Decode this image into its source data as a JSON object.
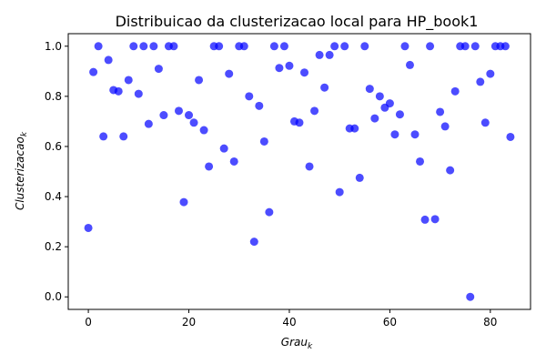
{
  "chart_data": {
    "type": "scatter",
    "title": "Distribuicao da clusterizacao local para HP_book1",
    "xlabel": "Grau_k",
    "ylabel": "Clusterizacao_k",
    "xlim": [
      -4,
      88
    ],
    "ylim": [
      -0.05,
      1.05
    ],
    "xticks": [
      0,
      20,
      40,
      60,
      80
    ],
    "yticks": [
      0.0,
      0.2,
      0.4,
      0.6,
      0.8,
      1.0
    ],
    "marker_color": "#0000ff",
    "grid": false,
    "series": [
      {
        "points": [
          [
            0,
            0.275
          ],
          [
            1,
            0.897
          ],
          [
            2,
            1.0
          ],
          [
            3,
            0.64
          ],
          [
            4,
            0.945
          ],
          [
            5,
            0.825
          ],
          [
            6,
            0.82
          ],
          [
            7,
            0.64
          ],
          [
            8,
            0.865
          ],
          [
            9,
            1.0
          ],
          [
            10,
            0.81
          ],
          [
            11,
            1.0
          ],
          [
            12,
            0.69
          ],
          [
            13,
            1.0
          ],
          [
            14,
            0.91
          ],
          [
            15,
            0.725
          ],
          [
            16,
            1.0
          ],
          [
            17,
            1.0
          ],
          [
            18,
            0.742
          ],
          [
            19,
            0.378
          ],
          [
            20,
            0.725
          ],
          [
            21,
            0.695
          ],
          [
            22,
            0.865
          ],
          [
            23,
            0.665
          ],
          [
            24,
            0.52
          ],
          [
            25,
            1.0
          ],
          [
            26,
            1.0
          ],
          [
            27,
            0.592
          ],
          [
            28,
            0.89
          ],
          [
            29,
            0.54
          ],
          [
            30,
            1.0
          ],
          [
            31,
            1.0
          ],
          [
            32,
            0.8
          ],
          [
            33,
            0.22
          ],
          [
            34,
            0.762
          ],
          [
            35,
            0.62
          ],
          [
            36,
            0.338
          ],
          [
            37,
            1.0
          ],
          [
            38,
            0.913
          ],
          [
            39,
            1.0
          ],
          [
            40,
            0.922
          ],
          [
            41,
            0.7
          ],
          [
            42,
            0.695
          ],
          [
            43,
            0.895
          ],
          [
            44,
            0.52
          ],
          [
            45,
            0.742
          ],
          [
            46,
            0.965
          ],
          [
            47,
            0.835
          ],
          [
            48,
            0.965
          ],
          [
            49,
            1.0
          ],
          [
            50,
            0.418
          ],
          [
            51,
            1.0
          ],
          [
            52,
            0.672
          ],
          [
            53,
            0.672
          ],
          [
            54,
            0.475
          ],
          [
            55,
            1.0
          ],
          [
            56,
            0.83
          ],
          [
            57,
            0.712
          ],
          [
            58,
            0.8
          ],
          [
            59,
            0.755
          ],
          [
            60,
            0.772
          ],
          [
            61,
            0.648
          ],
          [
            62,
            0.728
          ],
          [
            63,
            1.0
          ],
          [
            64,
            0.925
          ],
          [
            65,
            0.648
          ],
          [
            66,
            0.54
          ],
          [
            67,
            0.308
          ],
          [
            68,
            1.0
          ],
          [
            69,
            0.31
          ],
          [
            70,
            0.738
          ],
          [
            71,
            0.68
          ],
          [
            72,
            0.505
          ],
          [
            73,
            0.82
          ],
          [
            74,
            1.0
          ],
          [
            75,
            1.0
          ],
          [
            76,
            0.0
          ],
          [
            77,
            1.0
          ],
          [
            78,
            0.858
          ],
          [
            79,
            0.695
          ],
          [
            80,
            0.89
          ],
          [
            81,
            1.0
          ],
          [
            82,
            1.0
          ],
          [
            83,
            1.0
          ],
          [
            84,
            0.638
          ]
        ]
      }
    ]
  }
}
